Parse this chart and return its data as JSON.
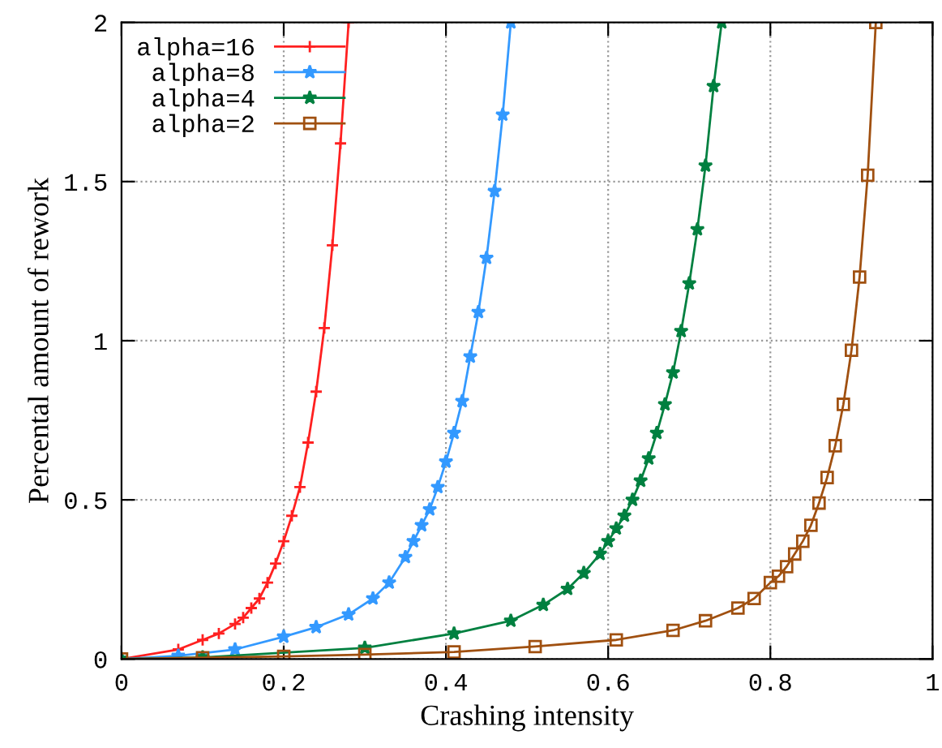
{
  "chart_data": {
    "type": "line",
    "xlabel": "Crashing intensity",
    "ylabel": "Percental amount of rework",
    "xlim": [
      0,
      1
    ],
    "ylim": [
      0,
      2
    ],
    "xticks": [
      0,
      0.2,
      0.4,
      0.6,
      0.8,
      1
    ],
    "yticks": [
      0,
      0.5,
      1,
      1.5,
      2
    ],
    "grid": true,
    "legend": "top left",
    "line_style": "solid",
    "series": [
      {
        "name": "alpha=16",
        "color": "#ff2020",
        "marker": "cross",
        "x": [
          0,
          0.07,
          0.1,
          0.12,
          0.14,
          0.15,
          0.16,
          0.17,
          0.18,
          0.19,
          0.2,
          0.21,
          0.22,
          0.23,
          0.24,
          0.25,
          0.26,
          0.27,
          0.28
        ],
        "values": [
          0,
          0.03,
          0.06,
          0.08,
          0.11,
          0.13,
          0.16,
          0.19,
          0.24,
          0.3,
          0.37,
          0.45,
          0.54,
          0.68,
          0.84,
          1.04,
          1.3,
          1.62,
          2.0
        ]
      },
      {
        "name": "alpha=8",
        "color": "#3399ff",
        "marker": "star",
        "x": [
          0,
          0.07,
          0.14,
          0.2,
          0.24,
          0.28,
          0.31,
          0.33,
          0.35,
          0.36,
          0.37,
          0.38,
          0.39,
          0.4,
          0.41,
          0.42,
          0.43,
          0.44,
          0.45,
          0.46,
          0.47,
          0.48
        ],
        "values": [
          0,
          0.01,
          0.03,
          0.07,
          0.1,
          0.14,
          0.19,
          0.24,
          0.32,
          0.37,
          0.42,
          0.47,
          0.54,
          0.62,
          0.71,
          0.81,
          0.95,
          1.09,
          1.26,
          1.47,
          1.71,
          2.0
        ]
      },
      {
        "name": "alpha=4",
        "color": "#008040",
        "marker": "star",
        "x": [
          0,
          0.1,
          0.3,
          0.41,
          0.48,
          0.52,
          0.55,
          0.57,
          0.59,
          0.6,
          0.61,
          0.62,
          0.63,
          0.64,
          0.65,
          0.66,
          0.67,
          0.68,
          0.69,
          0.7,
          0.71,
          0.72,
          0.73,
          0.74
        ],
        "values": [
          0,
          0.005,
          0.035,
          0.08,
          0.12,
          0.17,
          0.22,
          0.27,
          0.33,
          0.37,
          0.41,
          0.45,
          0.5,
          0.56,
          0.63,
          0.71,
          0.8,
          0.9,
          1.03,
          1.18,
          1.35,
          1.55,
          1.8,
          2.0
        ]
      },
      {
        "name": "alpha=2",
        "color": "#a05010",
        "marker": "square",
        "x": [
          0,
          0.1,
          0.2,
          0.3,
          0.41,
          0.51,
          0.61,
          0.68,
          0.72,
          0.76,
          0.78,
          0.8,
          0.81,
          0.82,
          0.83,
          0.84,
          0.85,
          0.86,
          0.87,
          0.88,
          0.89,
          0.9,
          0.91,
          0.92,
          0.93
        ],
        "values": [
          0,
          0.004,
          0.008,
          0.014,
          0.022,
          0.039,
          0.06,
          0.09,
          0.12,
          0.16,
          0.19,
          0.24,
          0.26,
          0.29,
          0.33,
          0.37,
          0.42,
          0.49,
          0.57,
          0.67,
          0.8,
          0.97,
          1.2,
          1.52,
          2.0
        ]
      }
    ]
  }
}
